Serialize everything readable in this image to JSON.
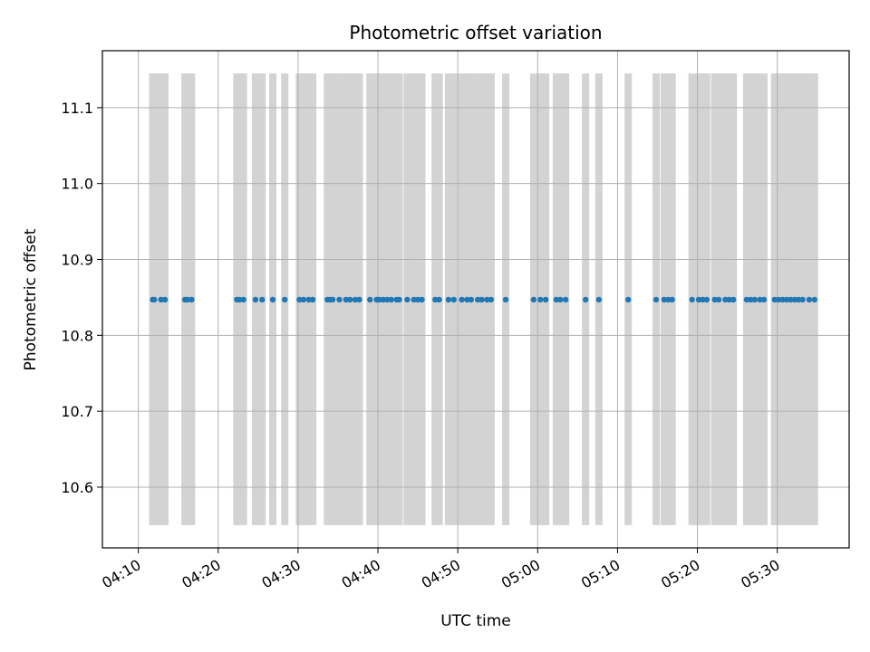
{
  "chart_data": {
    "type": "scatter",
    "title": "Photometric offset variation",
    "xlabel": "UTC time",
    "ylabel": "Photometric offset",
    "x_unit": "UTC time (HH:MM)",
    "xlim": [
      "04:05:30",
      "05:39:00"
    ],
    "ylim": [
      10.52,
      11.175
    ],
    "x_ticks": [
      "04:10",
      "04:20",
      "04:30",
      "04:40",
      "04:50",
      "05:00",
      "05:10",
      "05:20",
      "05:30"
    ],
    "y_ticks": [
      10.6,
      10.7,
      10.8,
      10.9,
      11.0,
      11.1
    ],
    "grid": true,
    "colors": {
      "points": "#1f77b4",
      "bands": "#d3d3d3",
      "grid": "#b0b0b0"
    },
    "bands": {
      "y_range": [
        10.55,
        11.145
      ],
      "times": [
        "04:11:48",
        "04:12:00",
        "04:12:50",
        "04:13:20",
        "04:15:50",
        "04:16:10",
        "04:16:40",
        "04:22:20",
        "04:22:40",
        "04:23:10",
        "04:24:40",
        "04:25:30",
        "04:26:50",
        "04:28:20",
        "04:30:10",
        "04:30:40",
        "04:31:20",
        "04:31:50",
        "04:33:40",
        "04:34:00",
        "04:34:20",
        "04:35:10",
        "04:36:00",
        "04:36:30",
        "04:37:10",
        "04:37:40",
        "04:39:00",
        "04:39:50",
        "04:40:10",
        "04:40:40",
        "04:41:10",
        "04:41:40",
        "04:42:20",
        "04:42:40",
        "04:43:40",
        "04:44:30",
        "04:45:00",
        "04:45:30",
        "04:47:10",
        "04:47:40",
        "04:48:50",
        "04:49:30",
        "04:50:30",
        "04:51:10",
        "04:51:40",
        "04:52:30",
        "04:53:00",
        "04:53:40",
        "04:54:10",
        "04:56:00",
        "04:59:30",
        "05:00:20",
        "05:01:00",
        "05:02:20",
        "05:02:50",
        "05:03:30",
        "05:06:00",
        "05:07:40",
        "05:11:20",
        "05:14:50",
        "05:15:50",
        "05:16:20",
        "05:16:50",
        "05:19:20",
        "05:20:10",
        "05:20:40",
        "05:21:10",
        "05:22:10",
        "05:22:40",
        "05:23:30",
        "05:24:00",
        "05:24:30",
        "05:26:10",
        "05:26:40",
        "05:27:10",
        "05:27:50",
        "05:28:20",
        "05:29:40",
        "05:30:10",
        "05:30:40",
        "05:31:10",
        "05:31:40",
        "05:32:10",
        "05:32:40",
        "05:33:10",
        "05:34:00",
        "05:34:40"
      ]
    },
    "series": [
      {
        "y": 10.847,
        "x": [
          "04:11:48",
          "04:12:00",
          "04:12:50",
          "04:13:20",
          "04:15:50",
          "04:16:10",
          "04:16:40",
          "04:22:20",
          "04:22:40",
          "04:23:10",
          "04:24:40",
          "04:25:30",
          "04:26:50",
          "04:28:20",
          "04:30:10",
          "04:30:40",
          "04:31:20",
          "04:31:50",
          "04:33:40",
          "04:34:00",
          "04:34:20",
          "04:35:10",
          "04:36:00",
          "04:36:30",
          "04:37:10",
          "04:37:40",
          "04:39:00",
          "04:39:50",
          "04:40:10",
          "04:40:40",
          "04:41:10",
          "04:41:40",
          "04:42:20",
          "04:42:40",
          "04:43:40",
          "04:44:30",
          "04:45:00",
          "04:45:30",
          "04:47:10",
          "04:47:40",
          "04:48:50",
          "04:49:30",
          "04:50:30",
          "04:51:10",
          "04:51:40",
          "04:52:30",
          "04:53:00",
          "04:53:40",
          "04:54:10",
          "04:56:00",
          "04:59:30",
          "05:00:20",
          "05:01:00",
          "05:02:20",
          "05:02:50",
          "05:03:30",
          "05:06:00",
          "05:07:40",
          "05:11:20",
          "05:14:50",
          "05:15:50",
          "05:16:20",
          "05:16:50",
          "05:19:20",
          "05:20:10",
          "05:20:40",
          "05:21:10",
          "05:22:10",
          "05:22:40",
          "05:23:30",
          "05:24:00",
          "05:24:30",
          "05:26:10",
          "05:26:40",
          "05:27:10",
          "05:27:50",
          "05:28:20",
          "05:29:40",
          "05:30:10",
          "05:30:40",
          "05:31:10",
          "05:31:40",
          "05:32:10",
          "05:32:40",
          "05:33:10",
          "05:34:00",
          "05:34:40"
        ]
      }
    ]
  }
}
